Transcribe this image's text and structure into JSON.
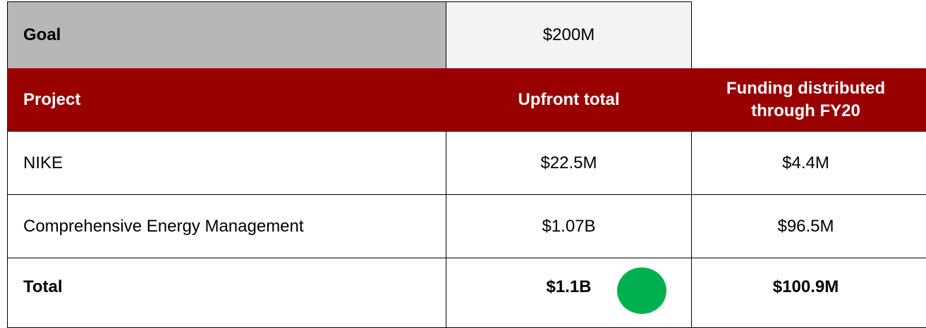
{
  "table": {
    "goal": {
      "label": "Goal",
      "value": "$200M"
    },
    "header": [
      "Project",
      "Upfront total",
      "Funding distributed through FY20"
    ],
    "rows": [
      [
        "NIKE",
        "$22.5M",
        "$4.4M"
      ],
      [
        "Comprehensive Energy Management",
        "$1.07B",
        "$96.5M"
      ],
      [
        "Total",
        "$1.1B",
        "$100.9M"
      ]
    ]
  }
}
